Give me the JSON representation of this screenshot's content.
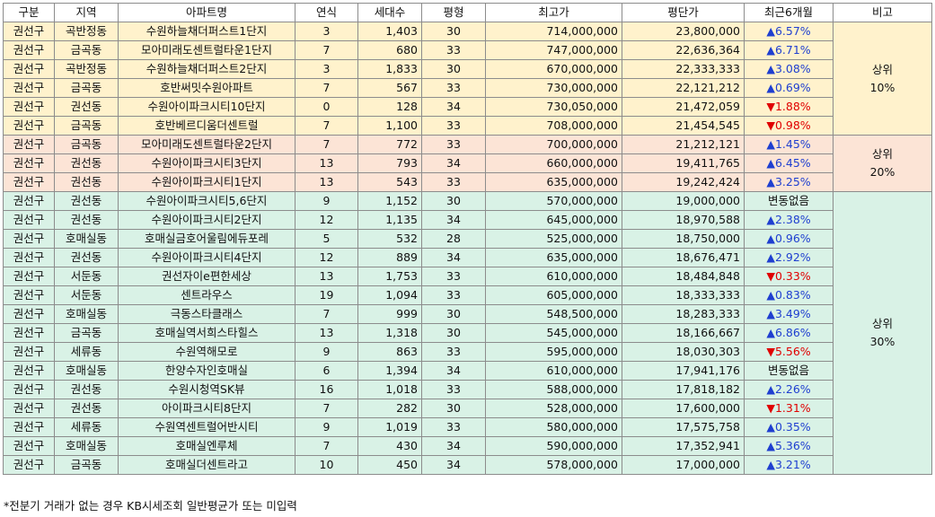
{
  "headers": [
    "구분",
    "지역",
    "아파트명",
    "연식",
    "세대수",
    "평형",
    "최고가",
    "평단가",
    "최근6개월",
    "비고"
  ],
  "rows": [
    {
      "gu": "권선구",
      "dong": "곡반정동",
      "apt": "수원하늘채더퍼스트1단지",
      "age": "3",
      "units": "1,403",
      "pyeong": "30",
      "max_price": "714,000,000",
      "price_per_pyeong": "23,800,000",
      "change": "6.57%",
      "dir": "up",
      "group": 1
    },
    {
      "gu": "권선구",
      "dong": "금곡동",
      "apt": "모아미래도센트럴타운1단지",
      "age": "7",
      "units": "680",
      "pyeong": "33",
      "max_price": "747,000,000",
      "price_per_pyeong": "22,636,364",
      "change": "6.71%",
      "dir": "up",
      "group": 1
    },
    {
      "gu": "권선구",
      "dong": "곡반정동",
      "apt": "수원하늘채더퍼스트2단지",
      "age": "3",
      "units": "1,833",
      "pyeong": "30",
      "max_price": "670,000,000",
      "price_per_pyeong": "22,333,333",
      "change": "3.08%",
      "dir": "up",
      "group": 1
    },
    {
      "gu": "권선구",
      "dong": "금곡동",
      "apt": "호반써밋수원아파트",
      "age": "7",
      "units": "567",
      "pyeong": "33",
      "max_price": "730,000,000",
      "price_per_pyeong": "22,121,212",
      "change": "0.69%",
      "dir": "up",
      "group": 1
    },
    {
      "gu": "권선구",
      "dong": "권선동",
      "apt": "수원아이파크시티10단지",
      "age": "0",
      "units": "128",
      "pyeong": "34",
      "max_price": "730,050,000",
      "price_per_pyeong": "21,472,059",
      "change": "1.88%",
      "dir": "down",
      "group": 1
    },
    {
      "gu": "권선구",
      "dong": "금곡동",
      "apt": "호반베르디움더센트럴",
      "age": "7",
      "units": "1,100",
      "pyeong": "33",
      "max_price": "708,000,000",
      "price_per_pyeong": "21,454,545",
      "change": "0.98%",
      "dir": "down",
      "group": 1
    },
    {
      "gu": "권선구",
      "dong": "금곡동",
      "apt": "모아미래도센트럴타운2단지",
      "age": "7",
      "units": "772",
      "pyeong": "33",
      "max_price": "700,000,000",
      "price_per_pyeong": "21,212,121",
      "change": "1.45%",
      "dir": "up",
      "group": 2
    },
    {
      "gu": "권선구",
      "dong": "권선동",
      "apt": "수원아이파크시티3단지",
      "age": "13",
      "units": "793",
      "pyeong": "34",
      "max_price": "660,000,000",
      "price_per_pyeong": "19,411,765",
      "change": "6.45%",
      "dir": "up",
      "group": 2
    },
    {
      "gu": "권선구",
      "dong": "권선동",
      "apt": "수원아이파크시티1단지",
      "age": "13",
      "units": "543",
      "pyeong": "33",
      "max_price": "635,000,000",
      "price_per_pyeong": "19,242,424",
      "change": "3.25%",
      "dir": "up",
      "group": 2
    },
    {
      "gu": "권선구",
      "dong": "권선동",
      "apt": "수원아이파크시티5,6단지",
      "age": "9",
      "units": "1,152",
      "pyeong": "30",
      "max_price": "570,000,000",
      "price_per_pyeong": "19,000,000",
      "change": "변동없음",
      "dir": "flat",
      "group": 3
    },
    {
      "gu": "권선구",
      "dong": "권선동",
      "apt": "수원아이파크시티2단지",
      "age": "12",
      "units": "1,135",
      "pyeong": "34",
      "max_price": "645,000,000",
      "price_per_pyeong": "18,970,588",
      "change": "2.38%",
      "dir": "up",
      "group": 3
    },
    {
      "gu": "권선구",
      "dong": "호매실동",
      "apt": "호매실금호어울림에듀포레",
      "age": "5",
      "units": "532",
      "pyeong": "28",
      "max_price": "525,000,000",
      "price_per_pyeong": "18,750,000",
      "change": "0.96%",
      "dir": "up",
      "group": 3
    },
    {
      "gu": "권선구",
      "dong": "권선동",
      "apt": "수원아이파크시티4단지",
      "age": "12",
      "units": "889",
      "pyeong": "34",
      "max_price": "635,000,000",
      "price_per_pyeong": "18,676,471",
      "change": "2.92%",
      "dir": "up",
      "group": 3
    },
    {
      "gu": "권선구",
      "dong": "서둔동",
      "apt": "권선자이e편한세상",
      "age": "13",
      "units": "1,753",
      "pyeong": "33",
      "max_price": "610,000,000",
      "price_per_pyeong": "18,484,848",
      "change": "0.33%",
      "dir": "down",
      "group": 3
    },
    {
      "gu": "권선구",
      "dong": "서둔동",
      "apt": "센트라우스",
      "age": "19",
      "units": "1,094",
      "pyeong": "33",
      "max_price": "605,000,000",
      "price_per_pyeong": "18,333,333",
      "change": "0.83%",
      "dir": "up",
      "group": 3
    },
    {
      "gu": "권선구",
      "dong": "호매실동",
      "apt": "극동스타클래스",
      "age": "7",
      "units": "999",
      "pyeong": "30",
      "max_price": "548,500,000",
      "price_per_pyeong": "18,283,333",
      "change": "3.49%",
      "dir": "up",
      "group": 3
    },
    {
      "gu": "권선구",
      "dong": "금곡동",
      "apt": "호매실역서희스타힐스",
      "age": "13",
      "units": "1,318",
      "pyeong": "30",
      "max_price": "545,000,000",
      "price_per_pyeong": "18,166,667",
      "change": "6.86%",
      "dir": "up",
      "group": 3
    },
    {
      "gu": "권선구",
      "dong": "세류동",
      "apt": "수원역해모로",
      "age": "9",
      "units": "863",
      "pyeong": "33",
      "max_price": "595,000,000",
      "price_per_pyeong": "18,030,303",
      "change": "5.56%",
      "dir": "down",
      "group": 3
    },
    {
      "gu": "권선구",
      "dong": "호매실동",
      "apt": "한양수자인호매실",
      "age": "6",
      "units": "1,394",
      "pyeong": "34",
      "max_price": "610,000,000",
      "price_per_pyeong": "17,941,176",
      "change": "변동없음",
      "dir": "flat",
      "group": 3
    },
    {
      "gu": "권선구",
      "dong": "권선동",
      "apt": "수원시청역SK뷰",
      "age": "16",
      "units": "1,018",
      "pyeong": "33",
      "max_price": "588,000,000",
      "price_per_pyeong": "17,818,182",
      "change": "2.26%",
      "dir": "up",
      "group": 3
    },
    {
      "gu": "권선구",
      "dong": "권선동",
      "apt": "아이파크시티8단지",
      "age": "7",
      "units": "282",
      "pyeong": "30",
      "max_price": "528,000,000",
      "price_per_pyeong": "17,600,000",
      "change": "1.31%",
      "dir": "down",
      "group": 3
    },
    {
      "gu": "권선구",
      "dong": "세류동",
      "apt": "수원역센트럴어반시티",
      "age": "9",
      "units": "1,019",
      "pyeong": "33",
      "max_price": "580,000,000",
      "price_per_pyeong": "17,575,758",
      "change": "0.35%",
      "dir": "up",
      "group": 3
    },
    {
      "gu": "권선구",
      "dong": "호매실동",
      "apt": "호매실엔루체",
      "age": "7",
      "units": "430",
      "pyeong": "34",
      "max_price": "590,000,000",
      "price_per_pyeong": "17,352,941",
      "change": "5.36%",
      "dir": "up",
      "group": 3
    },
    {
      "gu": "권선구",
      "dong": "금곡동",
      "apt": "호매실더센트라고",
      "age": "10",
      "units": "450",
      "pyeong": "34",
      "max_price": "578,000,000",
      "price_per_pyeong": "17,000,000",
      "change": "3.21%",
      "dir": "up",
      "group": 3
    }
  ],
  "groups": [
    {
      "id": 1,
      "line1": "상위",
      "line2": "10%",
      "color": "#fff2cc"
    },
    {
      "id": 2,
      "line1": "상위",
      "line2": "20%",
      "color": "#fce4d6"
    },
    {
      "id": 3,
      "line1": "상위",
      "line2": "30%",
      "color": "#d9f2e6"
    }
  ],
  "colors": {
    "up": "#1f3fd0",
    "down": "#e00000"
  },
  "icons": {
    "up": "triangle-up-icon",
    "down": "triangle-down-icon"
  },
  "footnote": "*전분기 거래가 없는 경우 KB시세조회 일반평균가 또는 미입력"
}
